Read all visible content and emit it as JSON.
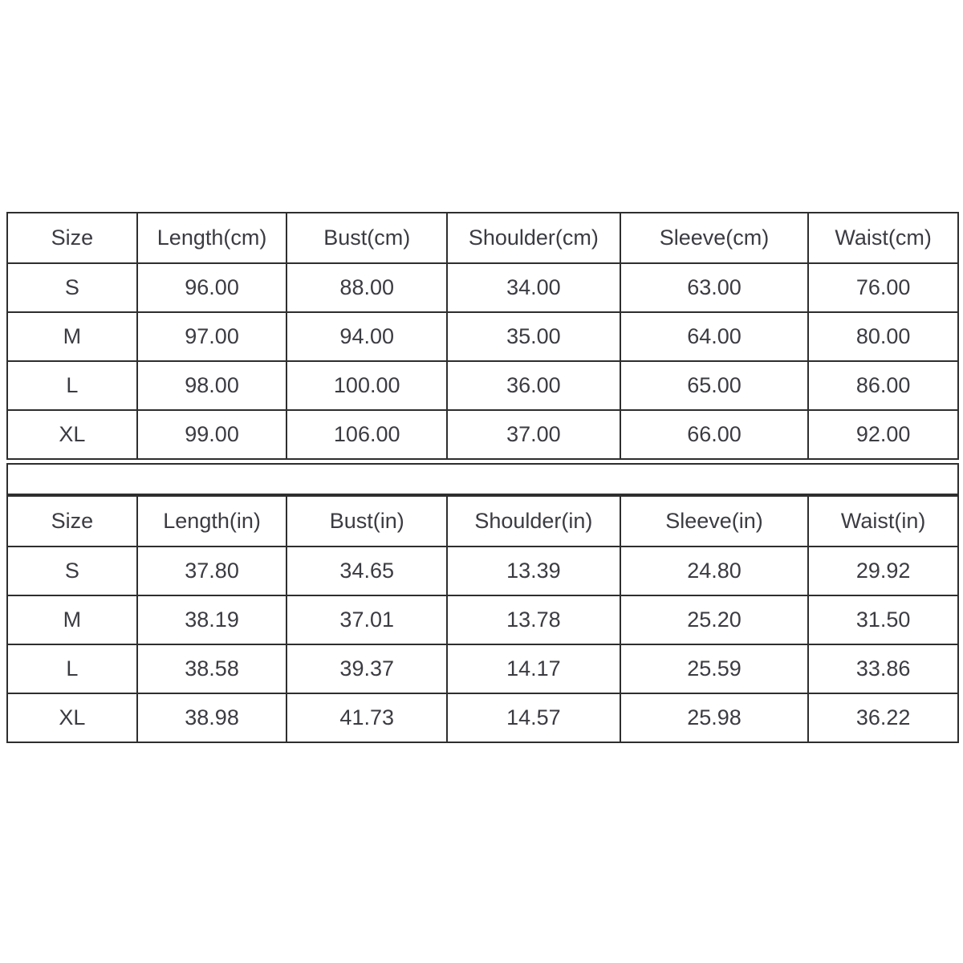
{
  "colors": {
    "background": "#ffffff",
    "border": "#2e2e2e",
    "text": "#3b3b42"
  },
  "chart_data": [
    {
      "type": "table",
      "unit": "cm",
      "columns": [
        "Size",
        "Length(cm)",
        "Bust(cm)",
        "Shoulder(cm)",
        "Sleeve(cm)",
        "Waist(cm)"
      ],
      "rows": [
        [
          "S",
          "96.00",
          "88.00",
          "34.00",
          "63.00",
          "76.00"
        ],
        [
          "M",
          "97.00",
          "94.00",
          "35.00",
          "64.00",
          "80.00"
        ],
        [
          "L",
          "98.00",
          "100.00",
          "36.00",
          "65.00",
          "86.00"
        ],
        [
          "XL",
          "99.00",
          "106.00",
          "37.00",
          "66.00",
          "92.00"
        ]
      ]
    },
    {
      "type": "table",
      "unit": "in",
      "columns": [
        "Size",
        "Length(in)",
        "Bust(in)",
        "Shoulder(in)",
        "Sleeve(in)",
        "Waist(in)"
      ],
      "rows": [
        [
          "S",
          "37.80",
          "34.65",
          "13.39",
          "24.80",
          "29.92"
        ],
        [
          "M",
          "38.19",
          "37.01",
          "13.78",
          "25.20",
          "31.50"
        ],
        [
          "L",
          "38.58",
          "39.37",
          "14.17",
          "25.59",
          "33.86"
        ],
        [
          "XL",
          "38.98",
          "41.73",
          "14.57",
          "25.98",
          "36.22"
        ]
      ]
    }
  ]
}
